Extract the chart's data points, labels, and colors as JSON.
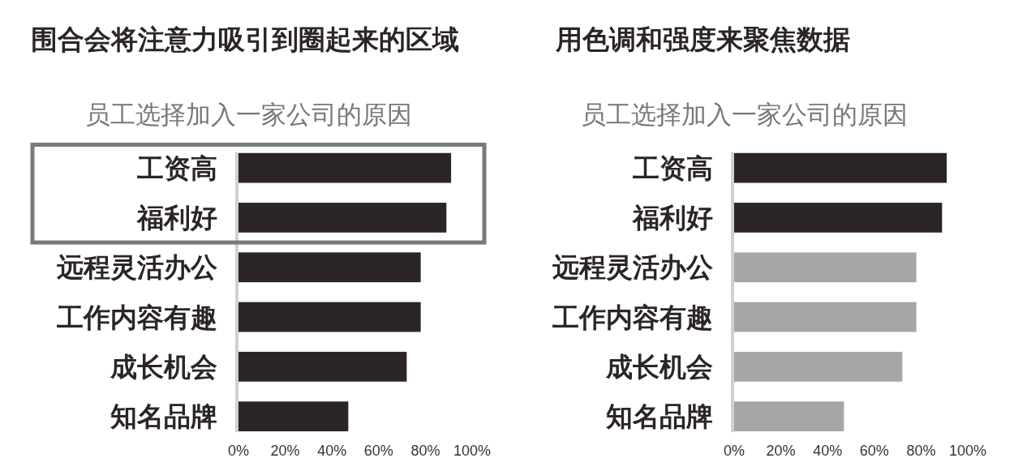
{
  "chart_data": [
    {
      "type": "bar",
      "orientation": "horizontal",
      "title": "围合会将注意力吸引到圈起来的区域",
      "subtitle": "员工选择加入一家公司的原因",
      "categories": [
        "工资高",
        "福利好",
        "远程灵活办公",
        "工作内容有趣",
        "成长机会",
        "知名品牌"
      ],
      "values": [
        91,
        89,
        78,
        78,
        72,
        47
      ],
      "colors": [
        "#2b2526",
        "#2b2526",
        "#2b2526",
        "#2b2526",
        "#2b2526",
        "#2b2526"
      ],
      "xlim": [
        0,
        100
      ],
      "xticks": [
        {
          "value": 0,
          "label": "0%"
        },
        {
          "value": 20,
          "label": "20%"
        },
        {
          "value": 40,
          "label": "40%"
        },
        {
          "value": 60,
          "label": "60%"
        },
        {
          "value": 80,
          "label": "80%"
        },
        {
          "value": 100,
          "label": "100%"
        }
      ]
    },
    {
      "type": "bar",
      "orientation": "horizontal",
      "title": "用色调和强度来聚焦数据",
      "subtitle": "员工选择加入一家公司的原因",
      "categories": [
        "工资高",
        "福利好",
        "远程灵活办公",
        "工作内容有趣",
        "成长机会",
        "知名品牌"
      ],
      "values": [
        91,
        89,
        78,
        78,
        72,
        47
      ],
      "colors": [
        "#2b2526",
        "#2b2526",
        "#a6a6a6",
        "#a6a6a6",
        "#a6a6a6",
        "#a6a6a6"
      ],
      "xlim": [
        0,
        100
      ],
      "xticks": [
        {
          "value": 0,
          "label": "0%"
        },
        {
          "value": 20,
          "label": "20%"
        },
        {
          "value": 40,
          "label": "40%"
        },
        {
          "value": 60,
          "label": "60%"
        },
        {
          "value": 80,
          "label": "80%"
        },
        {
          "value": 100,
          "label": "100%"
        }
      ]
    }
  ]
}
